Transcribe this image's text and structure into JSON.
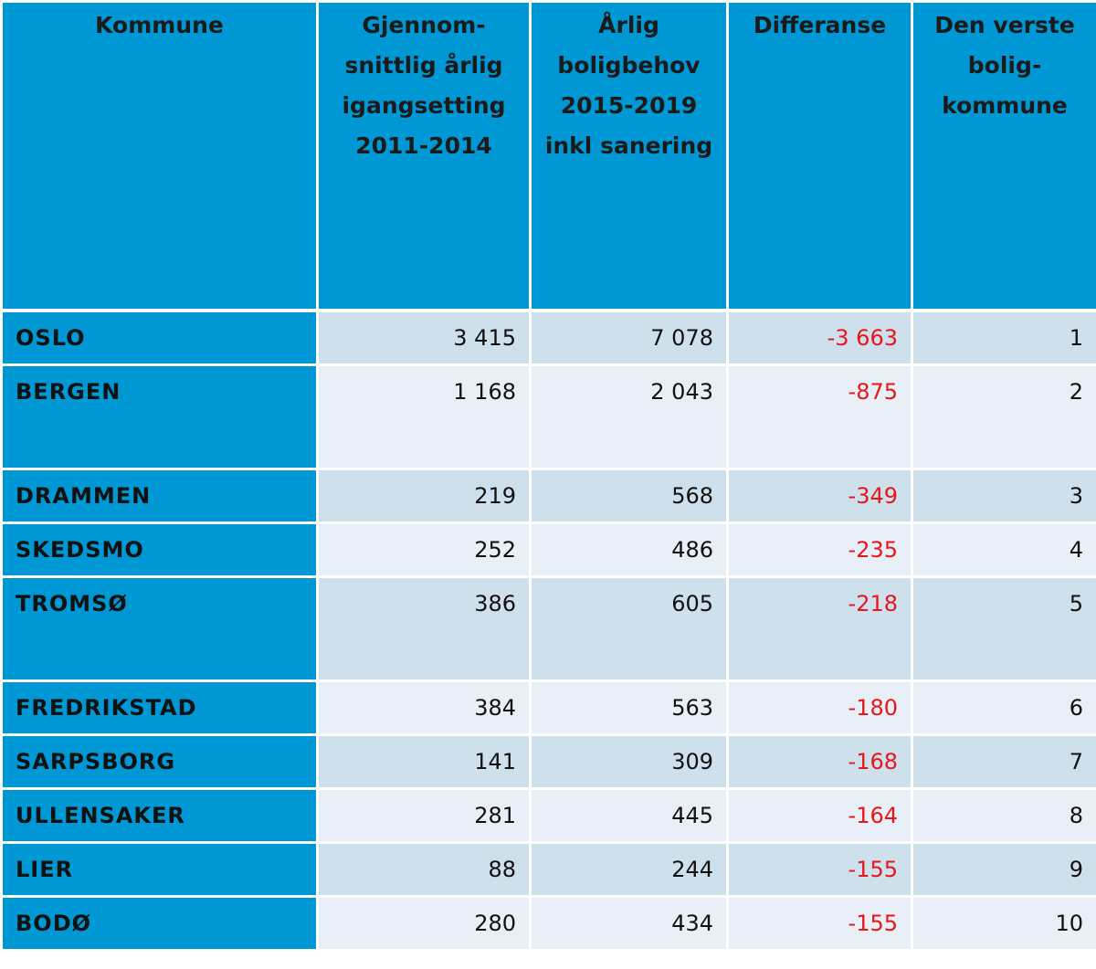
{
  "chart_data": {
    "type": "table",
    "columns": [
      "Kommune",
      "Gjennom-snittlig årlig igangsetting 2011-2014",
      "Årlig boligbehov 2015-2019 inkl sanering",
      "Differanse",
      "Den verste bolig-kommune"
    ],
    "header_lines": [
      [
        "Kommune"
      ],
      [
        "Gjennom-",
        "snittlig årlig",
        "igangsetting",
        "2011-2014"
      ],
      [
        "Årlig",
        "boligbehov",
        "2015-2019",
        "inkl sanering"
      ],
      [
        "Differanse"
      ],
      [
        "Den verste",
        "bolig-",
        "kommune"
      ]
    ],
    "rows": [
      {
        "kommune": "OSLO",
        "igangsetting": "3 415",
        "behov": "7 078",
        "differanse": "-3 663",
        "rank": "1",
        "tall": false
      },
      {
        "kommune": "BERGEN",
        "igangsetting": "1 168",
        "behov": "2 043",
        "differanse": "-875",
        "rank": "2",
        "tall": true
      },
      {
        "kommune": "DRAMMEN",
        "igangsetting": "219",
        "behov": "568",
        "differanse": "-349",
        "rank": "3",
        "tall": false
      },
      {
        "kommune": "SKEDSMO",
        "igangsetting": "252",
        "behov": "486",
        "differanse": "-235",
        "rank": "4",
        "tall": false
      },
      {
        "kommune": "TROMSØ",
        "igangsetting": "386",
        "behov": "605",
        "differanse": "-218",
        "rank": "5",
        "tall": true
      },
      {
        "kommune": "FREDRIKSTAD",
        "igangsetting": "384",
        "behov": "563",
        "differanse": "-180",
        "rank": "6",
        "tall": false
      },
      {
        "kommune": "SARPSBORG",
        "igangsetting": "141",
        "behov": "309",
        "differanse": "-168",
        "rank": "7",
        "tall": false
      },
      {
        "kommune": "ULLENSAKER",
        "igangsetting": "281",
        "behov": "445",
        "differanse": "-164",
        "rank": "8",
        "tall": false
      },
      {
        "kommune": "LIER",
        "igangsetting": "88",
        "behov": "244",
        "differanse": "-155",
        "rank": "9",
        "tall": false
      },
      {
        "kommune": "BODØ",
        "igangsetting": "280",
        "behov": "434",
        "differanse": "-155",
        "rank": "10",
        "tall": false
      }
    ],
    "colors": {
      "header_bg": "#0098d4",
      "row_odd": "#cfe0ed",
      "row_even": "#e8eff6",
      "negative": "#e8161b"
    }
  }
}
